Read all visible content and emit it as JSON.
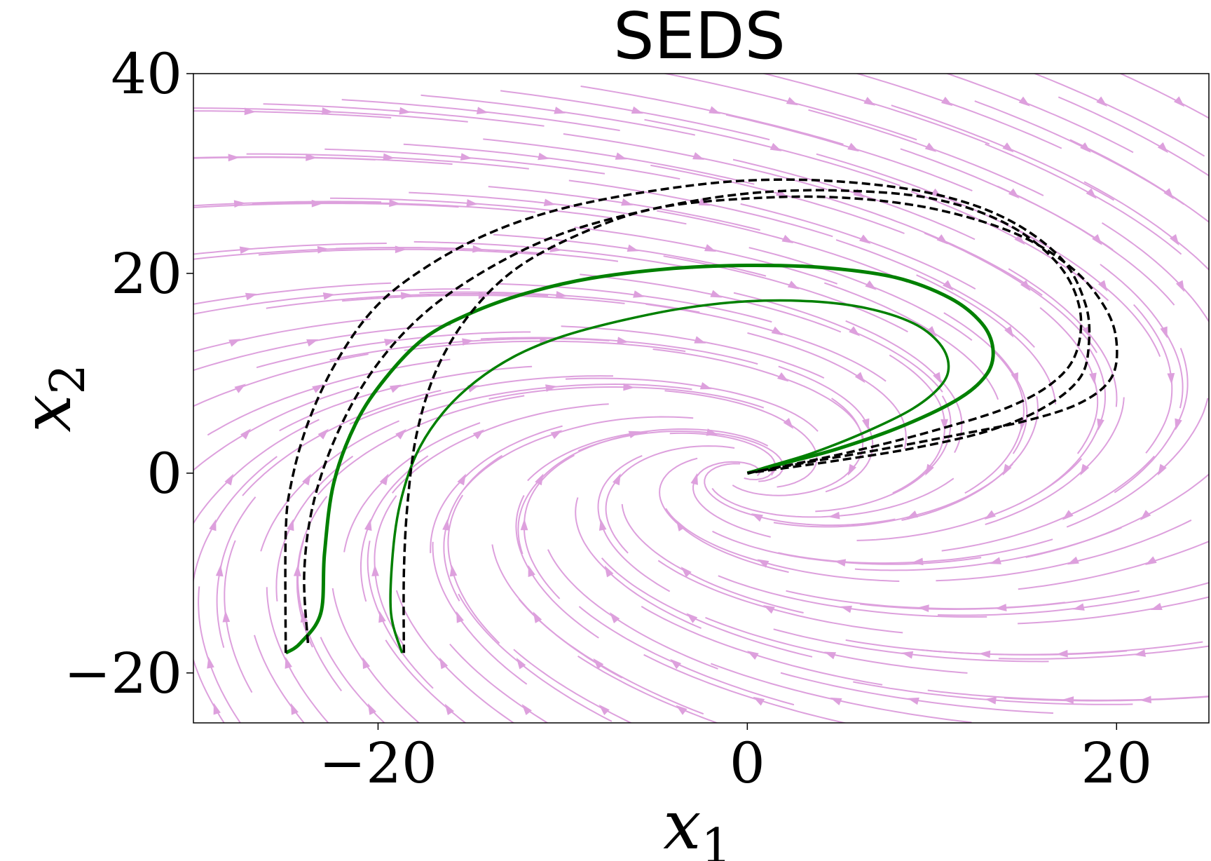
{
  "chart_data": {
    "type": "line",
    "title": "SEDS",
    "xlabel": "x",
    "xlabel_sub": "1",
    "ylabel": "x",
    "ylabel_sub": "2",
    "xlim": [
      -30,
      25
    ],
    "ylim": [
      -25,
      40
    ],
    "xticks": [
      -20,
      0,
      20
    ],
    "yticks": [
      -20,
      0,
      20,
      40
    ],
    "xtick_labels": [
      "−20",
      "0",
      "20"
    ],
    "ytick_labels": [
      "−20",
      "0",
      "20",
      "40"
    ],
    "grid": false,
    "colors": {
      "streamlines": "#dda0dd",
      "reproductions": "#008000",
      "demonstrations": "#000000"
    },
    "series": [
      {
        "style": "solid-green",
        "x": [
          -25,
          -24.2,
          -23.1,
          -22.9,
          -22.4,
          -21.2,
          -19.6,
          -17.5,
          -15,
          -12,
          -8.5,
          -4,
          0,
          4,
          8,
          11,
          12.7,
          13.3,
          13,
          11.5,
          8.5,
          5,
          2,
          0
        ],
        "y": [
          -18,
          -17,
          -14,
          -8,
          -1,
          5,
          9.5,
          13.5,
          16,
          18,
          19.5,
          20.5,
          20.8,
          20.6,
          19.6,
          17.5,
          15,
          12.5,
          10,
          7.5,
          4.8,
          2.5,
          1,
          0
        ]
      },
      {
        "style": "solid-green",
        "x": [
          -18.7,
          -19.3,
          -19.2,
          -18.8,
          -17.9,
          -16.5,
          -14.7,
          -12.5,
          -10,
          -7,
          -3.5,
          0,
          3.5,
          6.5,
          9,
          10.4,
          10.9,
          10.5,
          9,
          6.5,
          3.5,
          1,
          0
        ],
        "y": [
          -18,
          -14,
          -8,
          -3,
          2,
          6,
          9.2,
          11.8,
          13.7,
          15.2,
          16.5,
          17.2,
          17.2,
          16.5,
          15,
          13,
          10.8,
          8.8,
          6.5,
          4.2,
          2,
          0.6,
          0
        ]
      },
      {
        "style": "dashed-black",
        "x": [
          -25,
          -25,
          -24.7,
          -23.8,
          -22.3,
          -20.2,
          -17.5,
          -14,
          -10,
          -5,
          0,
          5,
          10,
          14,
          17,
          18.3,
          18.5,
          18,
          16,
          13,
          9,
          5,
          2,
          0
        ],
        "y": [
          -18,
          -6,
          -1,
          5,
          11,
          16.5,
          20.5,
          24,
          26.5,
          28.3,
          29.3,
          29.2,
          28,
          25.5,
          21.5,
          17,
          13,
          9.5,
          6.5,
          4.2,
          2.5,
          1.3,
          0.5,
          0
        ]
      },
      {
        "style": "dashed-black",
        "x": [
          -23.8,
          -24,
          -23.5,
          -22.2,
          -20.2,
          -17.5,
          -14,
          -10,
          -5,
          0,
          5,
          10,
          14,
          16.8,
          18,
          17.8,
          16.5,
          14,
          10,
          6,
          2.5,
          0
        ],
        "y": [
          -17,
          -10,
          -3,
          4,
          10.5,
          16,
          20.5,
          24,
          26.5,
          28,
          28.3,
          27.5,
          25,
          21,
          16.5,
          12,
          9,
          6.5,
          4.2,
          2.3,
          0.9,
          0
        ]
      },
      {
        "style": "dashed-black",
        "x": [
          -18.6,
          -18.6,
          -18.4,
          -17.9,
          -16.8,
          -15,
          -12.5,
          -9,
          -5,
          0,
          5,
          10,
          14.5,
          17.6,
          19.4,
          20,
          19.7,
          18,
          15,
          11,
          7,
          3,
          0
        ],
        "y": [
          -18,
          -10,
          -3,
          4,
          10.5,
          16,
          20.5,
          24,
          26.5,
          27.5,
          27.6,
          26.5,
          24,
          20.5,
          16.5,
          13,
          9.5,
          7,
          5.2,
          3.7,
          2.3,
          1,
          0
        ]
      }
    ],
    "streamplot": {
      "field": "linear system with attractor at origin",
      "attractor": [
        0,
        0
      ]
    }
  }
}
